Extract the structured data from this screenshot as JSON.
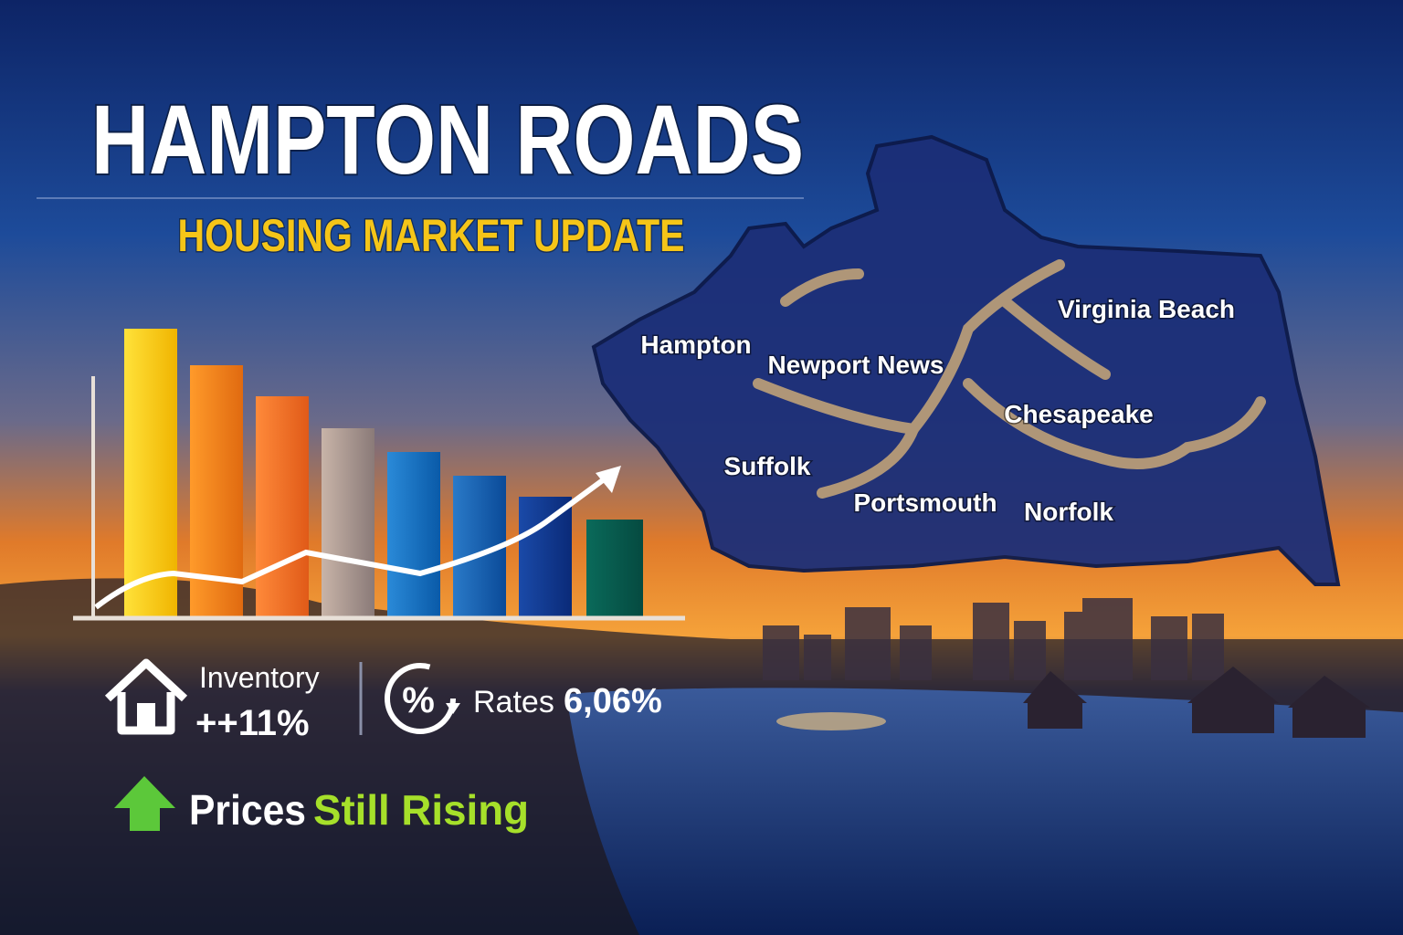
{
  "header": {
    "title": "HAMPTON ROADS",
    "subtitle": "HOUSING MARKET UPDATE"
  },
  "map": {
    "labels": [
      "Hampton",
      "Newport News",
      "Virginia Beach",
      "Chesapeake",
      "Suffolk",
      "Portsmouth",
      "Norfolk"
    ]
  },
  "stats": {
    "inventory": {
      "label": "Inventory",
      "value": "++11%"
    },
    "rates": {
      "label": "Rates",
      "value": "6,06%"
    }
  },
  "tagline": {
    "lead": "Prices",
    "highlight": "Still Rising"
  }
}
